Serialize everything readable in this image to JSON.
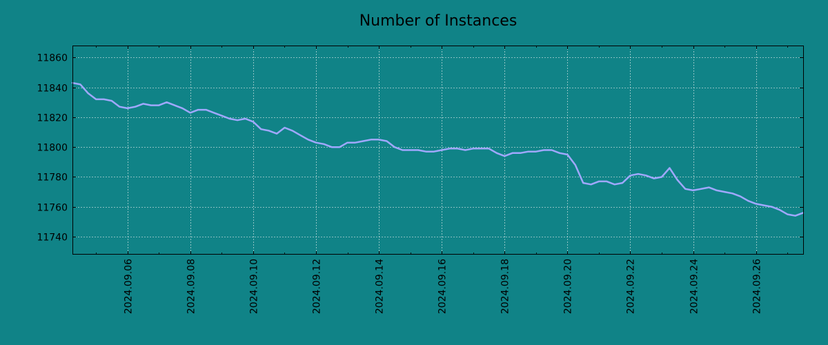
{
  "chart_data": {
    "type": "line",
    "title": "Number of Instances",
    "xlabel": "",
    "ylabel": "",
    "grid": true,
    "line_color": "#a0a8ff",
    "background_color": "#108387",
    "xlim": [
      "2024-09-04 06:00",
      "2024-09-27 12:00"
    ],
    "ylim": [
      11728,
      11868
    ],
    "x_ticks": [
      "2024.09.06",
      "2024.09.08",
      "2024.09.10",
      "2024.09.12",
      "2024.09.14",
      "2024.09.16",
      "2024.09.18",
      "2024.09.20",
      "2024.09.22",
      "2024.09.24",
      "2024.09.26"
    ],
    "y_ticks": [
      11740,
      11760,
      11780,
      11800,
      11820,
      11840,
      11860
    ],
    "series": [
      {
        "x": [
          "2024-09-04 06:00",
          "2024-09-04 12:00",
          "2024-09-04 18:00",
          "2024-09-05 00:00",
          "2024-09-05 06:00",
          "2024-09-05 12:00",
          "2024-09-05 18:00",
          "2024-09-06 00:00",
          "2024-09-06 06:00",
          "2024-09-06 12:00",
          "2024-09-06 18:00",
          "2024-09-07 00:00",
          "2024-09-07 06:00",
          "2024-09-07 12:00",
          "2024-09-07 18:00",
          "2024-09-08 00:00",
          "2024-09-08 06:00",
          "2024-09-08 12:00",
          "2024-09-08 18:00",
          "2024-09-09 00:00",
          "2024-09-09 06:00",
          "2024-09-09 12:00",
          "2024-09-09 18:00",
          "2024-09-10 00:00",
          "2024-09-10 06:00",
          "2024-09-10 12:00",
          "2024-09-10 18:00",
          "2024-09-11 00:00",
          "2024-09-11 06:00",
          "2024-09-11 12:00",
          "2024-09-11 18:00",
          "2024-09-12 00:00",
          "2024-09-12 06:00",
          "2024-09-12 12:00",
          "2024-09-12 18:00",
          "2024-09-13 00:00",
          "2024-09-13 06:00",
          "2024-09-13 12:00",
          "2024-09-13 18:00",
          "2024-09-14 00:00",
          "2024-09-14 06:00",
          "2024-09-14 12:00",
          "2024-09-14 18:00",
          "2024-09-15 00:00",
          "2024-09-15 06:00",
          "2024-09-15 12:00",
          "2024-09-15 18:00",
          "2024-09-16 00:00",
          "2024-09-16 06:00",
          "2024-09-16 12:00",
          "2024-09-16 18:00",
          "2024-09-17 00:00",
          "2024-09-17 06:00",
          "2024-09-17 12:00",
          "2024-09-17 18:00",
          "2024-09-18 00:00",
          "2024-09-18 06:00",
          "2024-09-18 12:00",
          "2024-09-18 18:00",
          "2024-09-19 00:00",
          "2024-09-19 06:00",
          "2024-09-19 12:00",
          "2024-09-19 18:00",
          "2024-09-20 00:00",
          "2024-09-20 06:00",
          "2024-09-20 12:00",
          "2024-09-20 18:00",
          "2024-09-21 00:00",
          "2024-09-21 06:00",
          "2024-09-21 12:00",
          "2024-09-21 18:00",
          "2024-09-22 00:00",
          "2024-09-22 06:00",
          "2024-09-22 12:00",
          "2024-09-22 18:00",
          "2024-09-23 00:00",
          "2024-09-23 06:00",
          "2024-09-23 12:00",
          "2024-09-23 18:00",
          "2024-09-24 00:00",
          "2024-09-24 06:00",
          "2024-09-24 12:00",
          "2024-09-24 18:00",
          "2024-09-25 00:00",
          "2024-09-25 06:00",
          "2024-09-25 12:00",
          "2024-09-25 18:00",
          "2024-09-26 00:00",
          "2024-09-26 06:00",
          "2024-09-26 12:00",
          "2024-09-26 18:00",
          "2024-09-27 00:00",
          "2024-09-27 06:00",
          "2024-09-27 12:00"
        ],
        "y": [
          11843,
          11842,
          11836,
          11832,
          11832,
          11831,
          11827,
          11826,
          11827,
          11829,
          11828,
          11828,
          11830,
          11828,
          11826,
          11823,
          11825,
          11825,
          11823,
          11821,
          11819,
          11818,
          11819,
          11817,
          11812,
          11811,
          11809,
          11813,
          11811,
          11808,
          11805,
          11803,
          11802,
          11800,
          11800,
          11803,
          11803,
          11804,
          11805,
          11805,
          11804,
          11800,
          11798,
          11798,
          11798,
          11797,
          11797,
          11798,
          11799,
          11799,
          11798,
          11799,
          11799,
          11799,
          11796,
          11794,
          11796,
          11796,
          11797,
          11797,
          11798,
          11798,
          11796,
          11795,
          11788,
          11776,
          11775,
          11777,
          11777,
          11775,
          11776,
          11781,
          11782,
          11781,
          11779,
          11780,
          11786,
          11778,
          11772,
          11771,
          11772,
          11773,
          11771,
          11770,
          11769,
          11767,
          11764,
          11762,
          11761,
          11760,
          11758,
          11755,
          11754,
          11756
        ]
      }
    ]
  }
}
